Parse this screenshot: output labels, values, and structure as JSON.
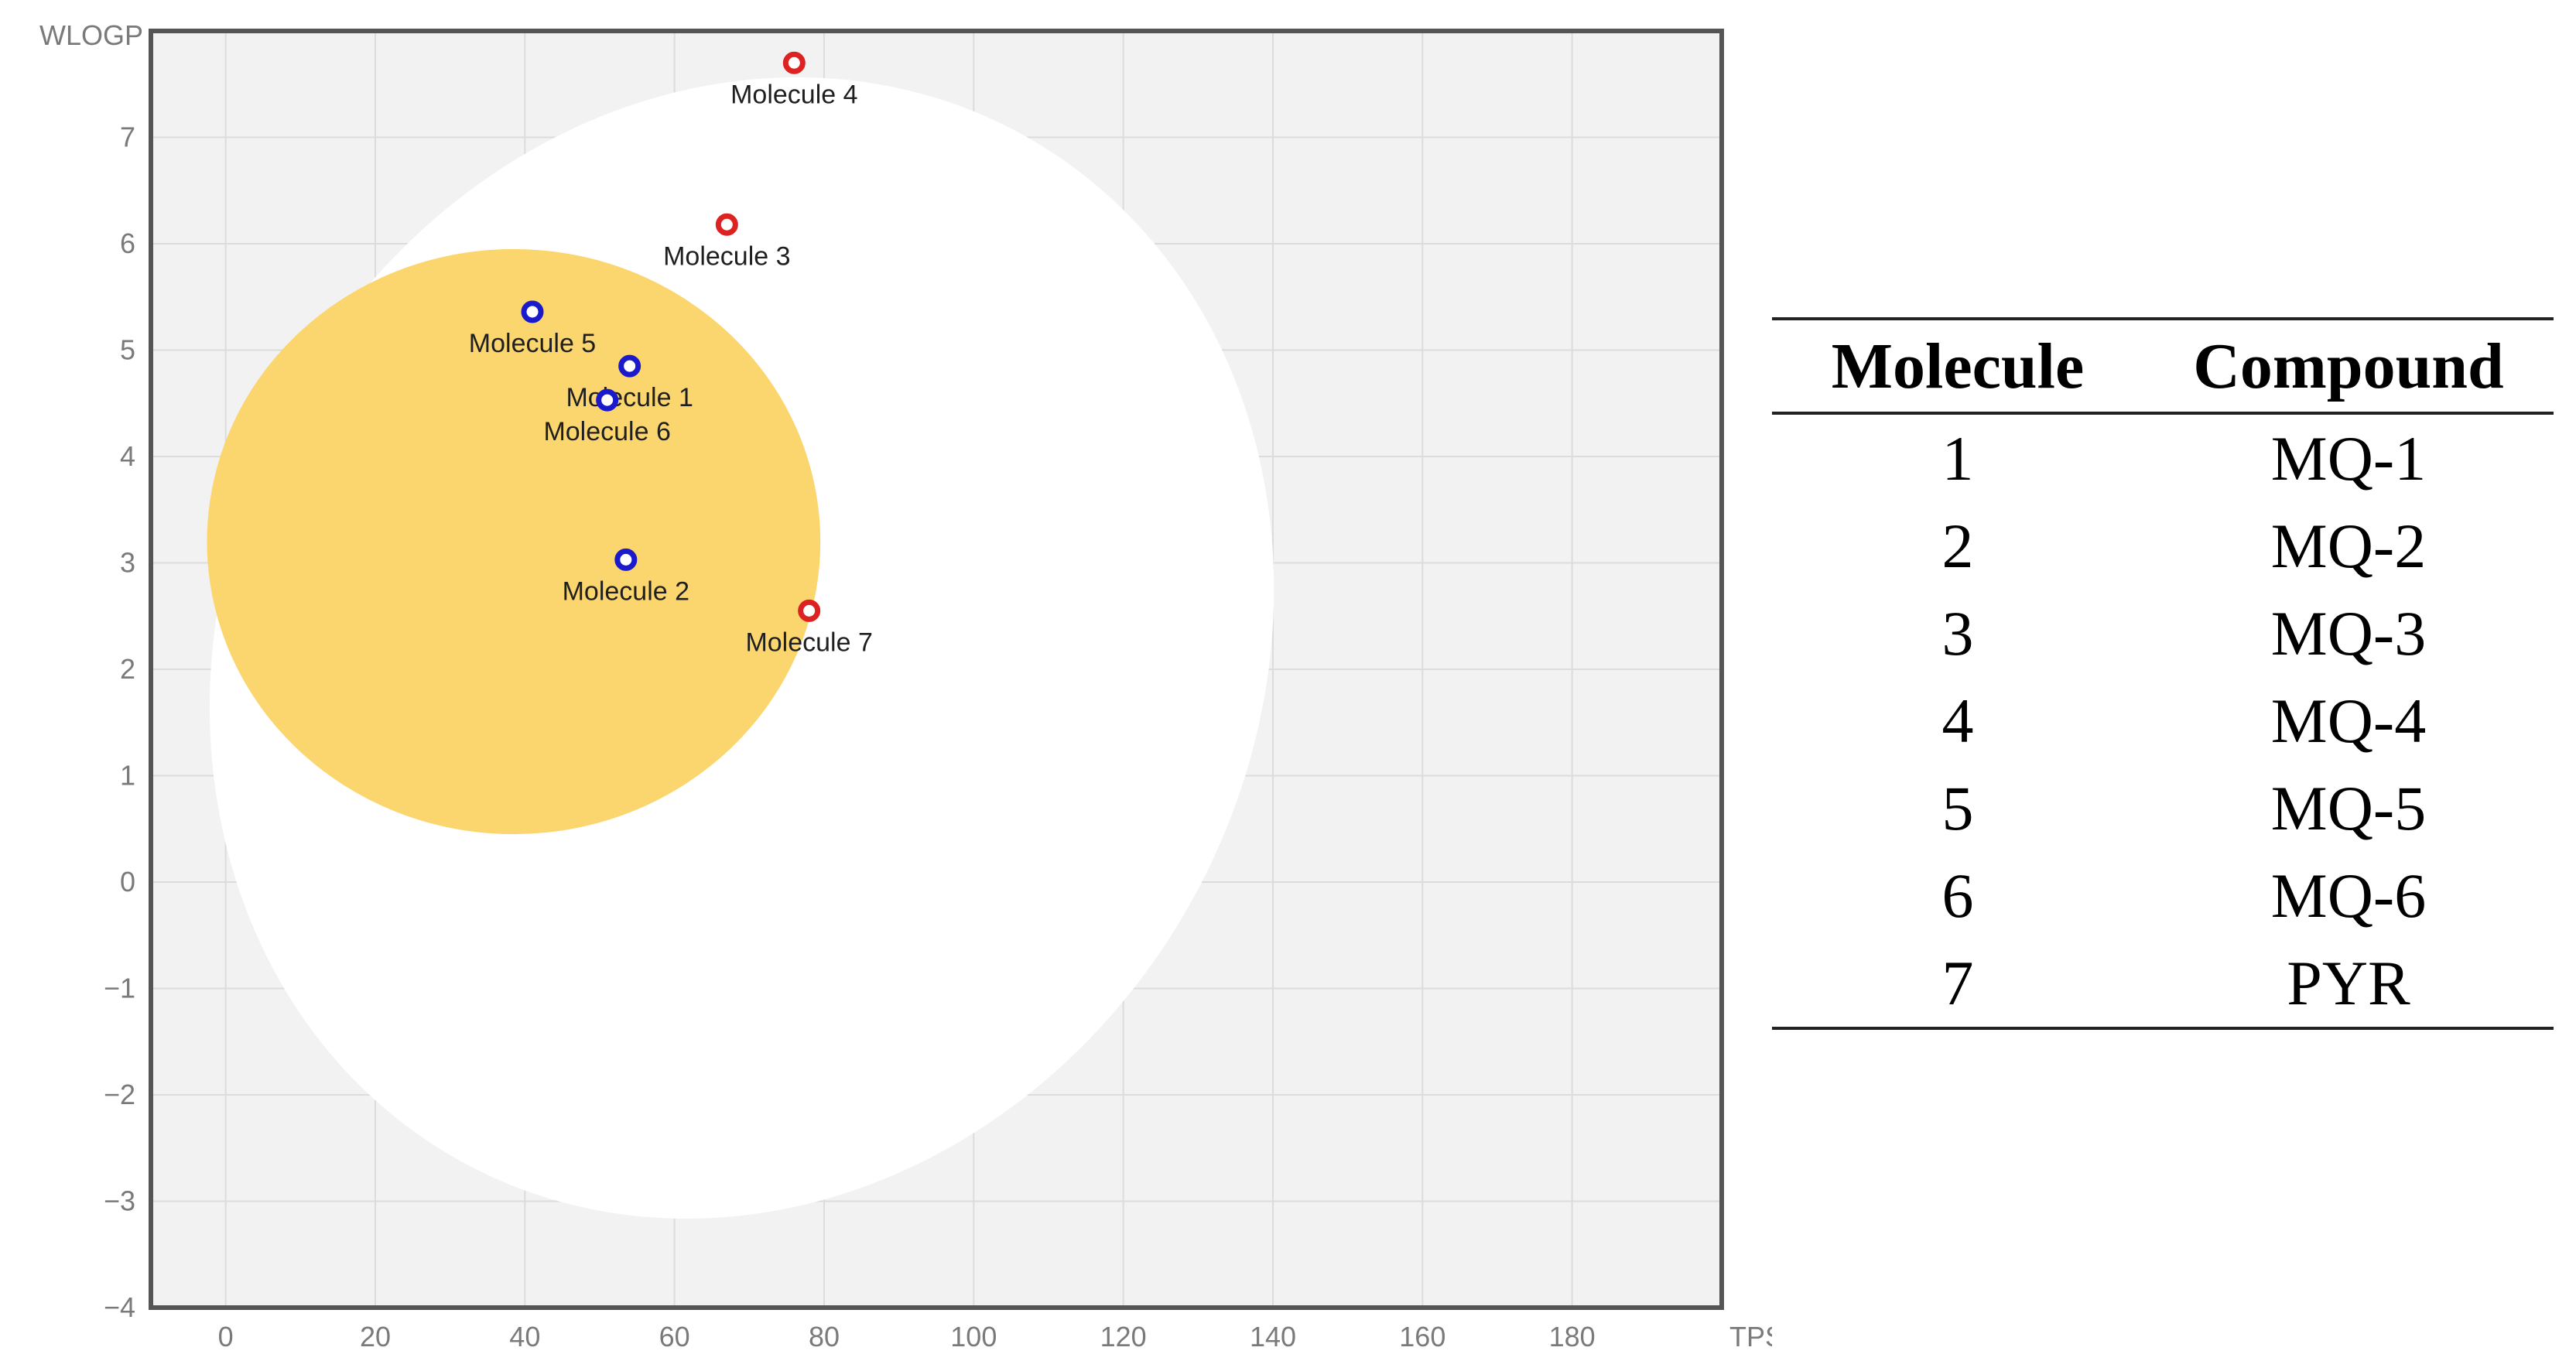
{
  "colors": {
    "plot_bg": "#f2f2f2",
    "frame": "#555555",
    "grid": "#dcdcdc",
    "white_region": "#ffffff",
    "yolk_region": "#fbd56e",
    "point_blue": "#1a1acc",
    "point_red": "#dd2222",
    "axis_text": "#7a7a7a",
    "label_text": "#1f1f1f"
  },
  "chart_data": {
    "type": "scatter",
    "title": "",
    "xlabel": "TPSA",
    "ylabel": "WLOGP",
    "xlim": [
      -10,
      200
    ],
    "ylim": [
      -4,
      8
    ],
    "xticks": [
      0,
      20,
      40,
      60,
      80,
      100,
      120,
      140,
      160,
      180
    ],
    "xtick_labels": [
      "0",
      "20",
      "40",
      "60",
      "80",
      "100",
      "120",
      "140",
      "160",
      "180"
    ],
    "yticks": [
      -4,
      -3,
      -2,
      -1,
      0,
      1,
      2,
      3,
      4,
      5,
      6,
      7
    ],
    "ytick_labels": [
      "−4",
      "−3",
      "−2",
      "−1",
      "0",
      "1",
      "2",
      "3",
      "4",
      "5",
      "6",
      "7"
    ],
    "grid": true,
    "regions": [
      {
        "name": "white",
        "kind": "ellipse",
        "cx": 69,
        "cy": 2.2,
        "rx": 69,
        "ry": 5.5,
        "angle_deg": 28
      },
      {
        "name": "yolk",
        "kind": "ellipse",
        "cx": 38.5,
        "cy": 3.2,
        "rx": 41,
        "ry": 2.75,
        "angle_deg": 0
      }
    ],
    "points": [
      {
        "label": "Molecule 1",
        "x": 54,
        "y": 4.85,
        "class": "blue",
        "label_pos": "below"
      },
      {
        "label": "Molecule 2",
        "x": 53.5,
        "y": 3.03,
        "class": "blue",
        "label_pos": "below"
      },
      {
        "label": "Molecule 3",
        "x": 67,
        "y": 6.18,
        "class": "red",
        "label_pos": "below"
      },
      {
        "label": "Molecule 4",
        "x": 76,
        "y": 7.7,
        "class": "red",
        "label_pos": "below"
      },
      {
        "label": "Molecule 5",
        "x": 41,
        "y": 5.36,
        "class": "blue",
        "label_pos": "below"
      },
      {
        "label": "Molecule 6",
        "x": 51,
        "y": 4.53,
        "class": "blue",
        "label_pos": "below"
      },
      {
        "label": "Molecule 7",
        "x": 78,
        "y": 2.55,
        "class": "red",
        "label_pos": "below"
      }
    ]
  },
  "table": {
    "headers": [
      "Molecule",
      "Compound"
    ],
    "rows": [
      [
        "1",
        "MQ-1"
      ],
      [
        "2",
        "MQ-2"
      ],
      [
        "3",
        "MQ-3"
      ],
      [
        "4",
        "MQ-4"
      ],
      [
        "5",
        "MQ-5"
      ],
      [
        "6",
        "MQ-6"
      ],
      [
        "7",
        "PYR"
      ]
    ]
  }
}
